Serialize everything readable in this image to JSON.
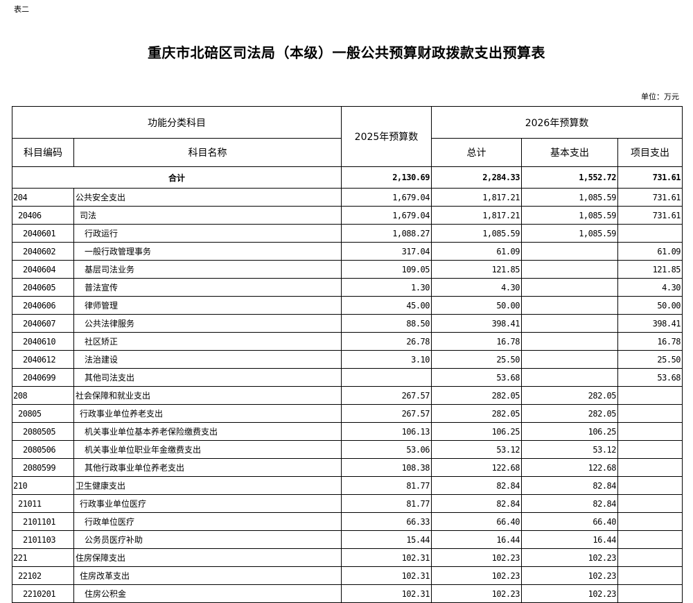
{
  "doc": {
    "tag": "表二",
    "title": "重庆市北碚区司法局（本级）一般公共预算财政拨款支出预算表",
    "unit": "单位：万元"
  },
  "header": {
    "func_class": "功能分类科目",
    "budget_2025": "2025年预算数",
    "budget_2026": "2026年预算数",
    "code": "科目编码",
    "name": "科目名称",
    "total": "总计",
    "basic": "基本支出",
    "project": "项目支出"
  },
  "total_row": {
    "label": "合计",
    "b2025": "2,130.69",
    "total": "2,284.33",
    "basic": "1,552.72",
    "project": "731.61"
  },
  "rows": [
    {
      "level": 1,
      "code": "204",
      "name": "公共安全支出",
      "b2025": "1,679.04",
      "total": "1,817.21",
      "basic": "1,085.59",
      "project": "731.61"
    },
    {
      "level": 2,
      "code": "20406",
      "name": "司法",
      "b2025": "1,679.04",
      "total": "1,817.21",
      "basic": "1,085.59",
      "project": "731.61"
    },
    {
      "level": 3,
      "code": "2040601",
      "name": "行政运行",
      "b2025": "1,088.27",
      "total": "1,085.59",
      "basic": "1,085.59",
      "project": ""
    },
    {
      "level": 3,
      "code": "2040602",
      "name": "一般行政管理事务",
      "b2025": "317.04",
      "total": "61.09",
      "basic": "",
      "project": "61.09"
    },
    {
      "level": 3,
      "code": "2040604",
      "name": "基层司法业务",
      "b2025": "109.05",
      "total": "121.85",
      "basic": "",
      "project": "121.85"
    },
    {
      "level": 3,
      "code": "2040605",
      "name": "普法宣传",
      "b2025": "1.30",
      "total": "4.30",
      "basic": "",
      "project": "4.30"
    },
    {
      "level": 3,
      "code": "2040606",
      "name": "律师管理",
      "b2025": "45.00",
      "total": "50.00",
      "basic": "",
      "project": "50.00"
    },
    {
      "level": 3,
      "code": "2040607",
      "name": "公共法律服务",
      "b2025": "88.50",
      "total": "398.41",
      "basic": "",
      "project": "398.41"
    },
    {
      "level": 3,
      "code": "2040610",
      "name": "社区矫正",
      "b2025": "26.78",
      "total": "16.78",
      "basic": "",
      "project": "16.78"
    },
    {
      "level": 3,
      "code": "2040612",
      "name": "法治建设",
      "b2025": "3.10",
      "total": "25.50",
      "basic": "",
      "project": "25.50"
    },
    {
      "level": 3,
      "code": "2040699",
      "name": "其他司法支出",
      "b2025": "",
      "total": "53.68",
      "basic": "",
      "project": "53.68"
    },
    {
      "level": 1,
      "code": "208",
      "name": "社会保障和就业支出",
      "b2025": "267.57",
      "total": "282.05",
      "basic": "282.05",
      "project": ""
    },
    {
      "level": 2,
      "code": "20805",
      "name": "行政事业单位养老支出",
      "b2025": "267.57",
      "total": "282.05",
      "basic": "282.05",
      "project": ""
    },
    {
      "level": 3,
      "code": "2080505",
      "name": "机关事业单位基本养老保险缴费支出",
      "b2025": "106.13",
      "total": "106.25",
      "basic": "106.25",
      "project": ""
    },
    {
      "level": 3,
      "code": "2080506",
      "name": "机关事业单位职业年金缴费支出",
      "b2025": "53.06",
      "total": "53.12",
      "basic": "53.12",
      "project": ""
    },
    {
      "level": 3,
      "code": "2080599",
      "name": "其他行政事业单位养老支出",
      "b2025": "108.38",
      "total": "122.68",
      "basic": "122.68",
      "project": ""
    },
    {
      "level": 1,
      "code": "210",
      "name": "卫生健康支出",
      "b2025": "81.77",
      "total": "82.84",
      "basic": "82.84",
      "project": ""
    },
    {
      "level": 2,
      "code": "21011",
      "name": "行政事业单位医疗",
      "b2025": "81.77",
      "total": "82.84",
      "basic": "82.84",
      "project": ""
    },
    {
      "level": 3,
      "code": "2101101",
      "name": "行政单位医疗",
      "b2025": "66.33",
      "total": "66.40",
      "basic": "66.40",
      "project": ""
    },
    {
      "level": 3,
      "code": "2101103",
      "name": "公务员医疗补助",
      "b2025": "15.44",
      "total": "16.44",
      "basic": "16.44",
      "project": ""
    },
    {
      "level": 1,
      "code": "221",
      "name": "住房保障支出",
      "b2025": "102.31",
      "total": "102.23",
      "basic": "102.23",
      "project": ""
    },
    {
      "level": 2,
      "code": "22102",
      "name": "住房改革支出",
      "b2025": "102.31",
      "total": "102.23",
      "basic": "102.23",
      "project": ""
    },
    {
      "level": 3,
      "code": "2210201",
      "name": "住房公积金",
      "b2025": "102.31",
      "total": "102.23",
      "basic": "102.23",
      "project": ""
    }
  ]
}
